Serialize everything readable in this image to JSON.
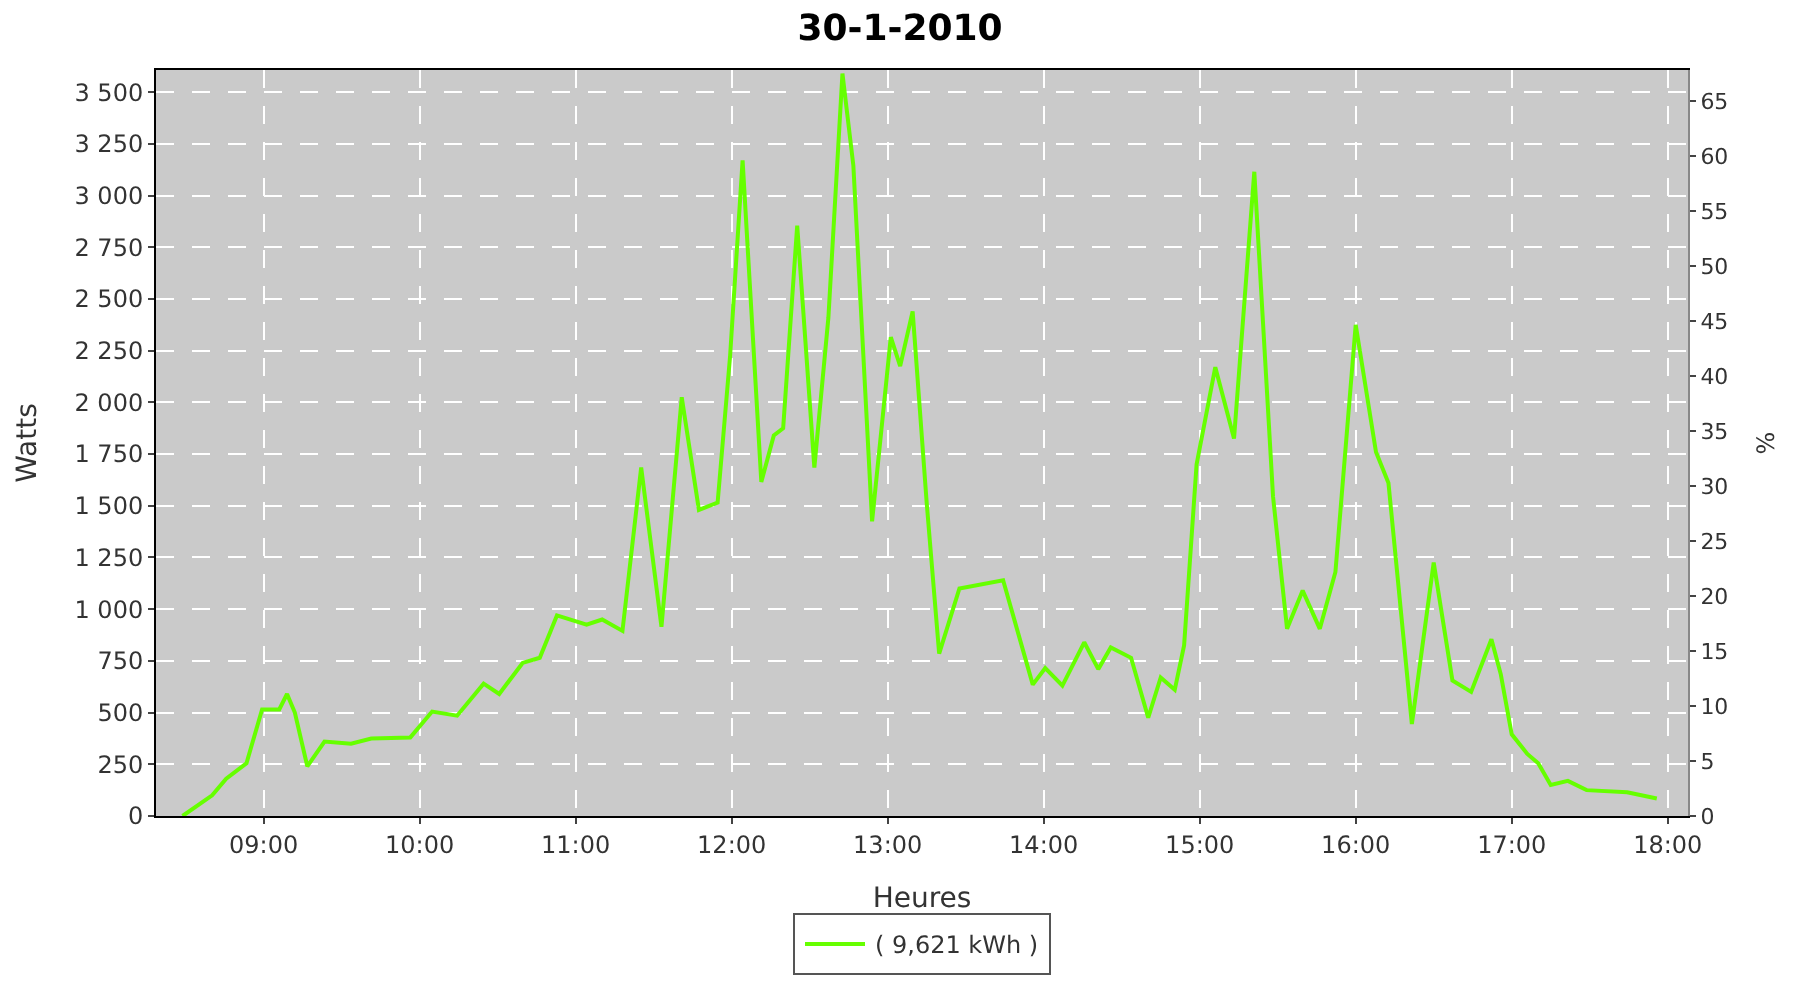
{
  "chart_data": {
    "type": "line",
    "title": "30-1-2010",
    "xlabel": "Heures",
    "ylabel": "Watts",
    "y2label": "%",
    "x": [
      8.48,
      8.67,
      8.76,
      8.89,
      8.99,
      9.1,
      9.15,
      9.2,
      9.28,
      9.39,
      9.56,
      9.69,
      9.94,
      10.08,
      10.24,
      10.41,
      10.51,
      10.66,
      10.77,
      10.88,
      11.07,
      11.17,
      11.3,
      11.42,
      11.55,
      11.68,
      11.79,
      11.91,
      11.99,
      12.07,
      12.19,
      12.27,
      12.33,
      12.42,
      12.53,
      12.62,
      12.71,
      12.78,
      12.9,
      13.02,
      13.08,
      13.16,
      13.25,
      13.33,
      13.46,
      13.74,
      13.93,
      14.01,
      14.12,
      14.26,
      14.35,
      14.43,
      14.56,
      14.67,
      14.75,
      14.84,
      14.9,
      14.98,
      15.1,
      15.22,
      15.35,
      15.47,
      15.56,
      15.66,
      15.77,
      15.87,
      16.0,
      16.13,
      16.21,
      16.36,
      16.5,
      16.62,
      16.74,
      16.87,
      16.93,
      17.0,
      17.1,
      17.17,
      17.25,
      17.36,
      17.48,
      17.74,
      17.93
    ],
    "series": [
      {
        "name": "( 9,621 kWh )",
        "color": "#66ff00",
        "values": [
          0,
          100,
          180,
          255,
          515,
          515,
          590,
          500,
          240,
          360,
          350,
          375,
          380,
          505,
          485,
          640,
          590,
          740,
          765,
          970,
          925,
          950,
          895,
          1685,
          915,
          2025,
          1480,
          1515,
          2225,
          3170,
          1615,
          1840,
          1875,
          2855,
          1685,
          2410,
          3590,
          3145,
          1425,
          2315,
          2175,
          2440,
          1515,
          785,
          1100,
          1140,
          635,
          715,
          630,
          840,
          710,
          815,
          765,
          475,
          670,
          610,
          825,
          1700,
          2170,
          1825,
          3115,
          1545,
          905,
          1090,
          905,
          1180,
          2375,
          1760,
          1610,
          445,
          1225,
          655,
          600,
          855,
          685,
          395,
          300,
          255,
          150,
          170,
          125,
          115,
          85
        ]
      }
    ],
    "xlim": [
      8.31,
      18.13
    ],
    "xticks": [
      {
        "value": 9,
        "label": "09:00"
      },
      {
        "value": 10,
        "label": "10:00"
      },
      {
        "value": 11,
        "label": "11:00"
      },
      {
        "value": 12,
        "label": "12:00"
      },
      {
        "value": 13,
        "label": "13:00"
      },
      {
        "value": 14,
        "label": "14:00"
      },
      {
        "value": 15,
        "label": "15:00"
      },
      {
        "value": 16,
        "label": "16:00"
      },
      {
        "value": 17,
        "label": "17:00"
      },
      {
        "value": 18,
        "label": "18:00"
      }
    ],
    "ylim": [
      0,
      3607
    ],
    "yticks": [
      0,
      250,
      500,
      750,
      {
        "value": 1000,
        "label": "1 000"
      },
      {
        "value": 1250,
        "label": "1 250"
      },
      {
        "value": 1500,
        "label": "1 500"
      },
      {
        "value": 1750,
        "label": "1 750"
      },
      {
        "value": 2000,
        "label": "2 000"
      },
      {
        "value": 2250,
        "label": "2 250"
      },
      {
        "value": 2500,
        "label": "2 500"
      },
      {
        "value": 2750,
        "label": "2 750"
      },
      {
        "value": 3000,
        "label": "3 000"
      },
      {
        "value": 3250,
        "label": "3 250"
      },
      {
        "value": 3500,
        "label": "3 500"
      }
    ],
    "y2lim": [
      0,
      67.8
    ],
    "y2ticks": [
      0,
      5,
      10,
      15,
      20,
      25,
      30,
      35,
      40,
      45,
      50,
      55,
      60,
      65
    ],
    "grid": true,
    "legend": "bottom",
    "marker": "none",
    "line_style": "solid"
  }
}
